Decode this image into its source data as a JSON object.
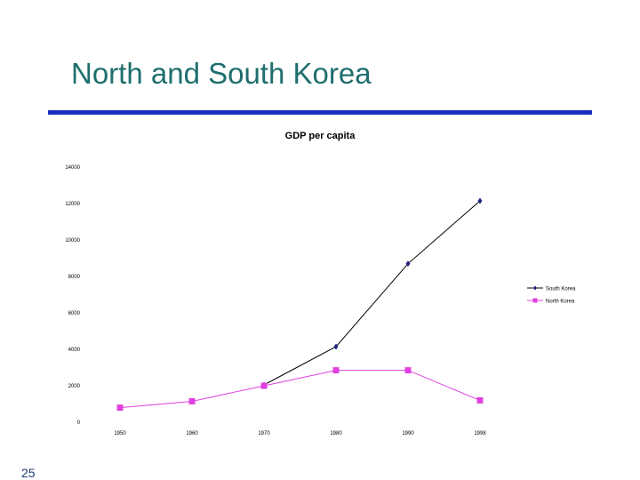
{
  "slide": {
    "title": "North and South Korea",
    "number": "25"
  },
  "chart_data": {
    "type": "line",
    "title": "GDP per capita",
    "xlabel": "",
    "ylabel": "",
    "categories": [
      "1950",
      "1960",
      "1970",
      "1980",
      "1990",
      "1998"
    ],
    "ylim": [
      0,
      14000
    ],
    "yticks": [
      "0",
      "2000",
      "4000",
      "6000",
      "8000",
      "10000",
      "12000",
      "14000"
    ],
    "grid": false,
    "legend_position": "right",
    "series": [
      {
        "name": "South Korea",
        "color": "#000000",
        "marker_color": "#1a237e",
        "marker": "diamond",
        "values": [
          null,
          null,
          2000,
          4100,
          8650,
          12100
        ]
      },
      {
        "name": "North Korea",
        "color": "#e040e0",
        "marker_color": "#e040e0",
        "marker": "square",
        "values": [
          750,
          1100,
          1950,
          2800,
          2800,
          1150
        ]
      }
    ]
  }
}
